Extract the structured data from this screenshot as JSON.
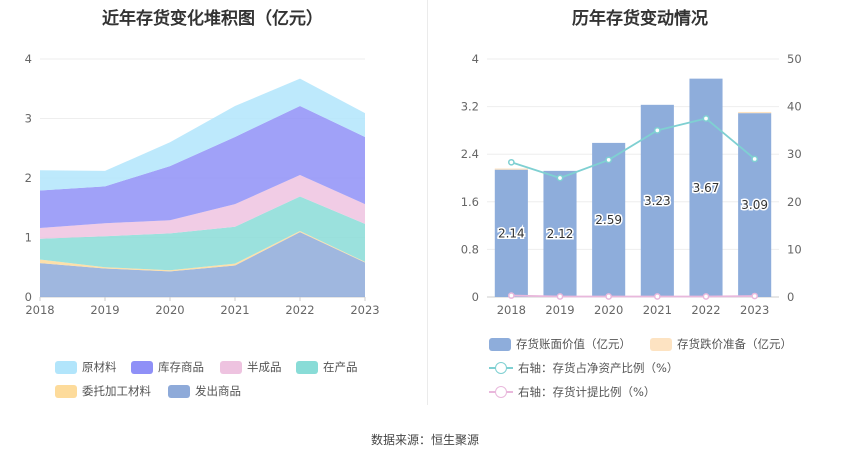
{
  "source": "数据来源：恒生聚源",
  "chart_data": [
    {
      "type": "area",
      "title": "近年存货变化堆积图（亿元）",
      "categories": [
        "2018",
        "2019",
        "2020",
        "2021",
        "2022",
        "2023"
      ],
      "ylim": [
        0,
        4
      ],
      "yticks": [
        "0",
        "1",
        "2",
        "3",
        "4"
      ],
      "grid": true,
      "legend_position": "bottom",
      "series": [
        {
          "name": "发出商品",
          "color": "#8eaad9",
          "values": [
            0.57,
            0.48,
            0.43,
            0.53,
            1.09,
            0.58
          ]
        },
        {
          "name": "委托加工材料",
          "color": "#fddb9b",
          "values": [
            0.06,
            0.02,
            0.02,
            0.03,
            0.02,
            0.01
          ]
        },
        {
          "name": "在产品",
          "color": "#89dcd7",
          "values": [
            0.35,
            0.52,
            0.62,
            0.62,
            0.58,
            0.64
          ]
        },
        {
          "name": "半成品",
          "color": "#eec3e0",
          "values": [
            0.18,
            0.22,
            0.22,
            0.38,
            0.36,
            0.33
          ]
        },
        {
          "name": "库存商品",
          "color": "#8f90f7",
          "values": [
            0.63,
            0.62,
            0.91,
            1.13,
            1.16,
            1.13
          ]
        },
        {
          "name": "原材料",
          "color": "#b2e5fb",
          "values": [
            0.34,
            0.26,
            0.4,
            0.52,
            0.46,
            0.4
          ]
        }
      ]
    },
    {
      "type": "bar",
      "title": "历年存货变动情况",
      "categories": [
        "2018",
        "2019",
        "2020",
        "2021",
        "2022",
        "2023"
      ],
      "ylim_left": [
        0,
        4
      ],
      "yticks_left": [
        "0",
        "0.8",
        "1.6",
        "2.4",
        "3.2",
        "4"
      ],
      "ylim_right": [
        0,
        50
      ],
      "yticks_right": [
        "0",
        "10",
        "20",
        "30",
        "40",
        "50"
      ],
      "legend_position": "bottom",
      "series": [
        {
          "name": "存货账面价值（亿元）",
          "color": "#8eaddb",
          "axis": "left",
          "kind": "bar",
          "values": [
            2.14,
            2.12,
            2.59,
            3.23,
            3.67,
            3.09
          ],
          "labels": [
            "2.14",
            "2.12",
            "2.59",
            "3.23",
            "3.67",
            "3.09"
          ]
        },
        {
          "name": "存货跌价准备（亿元）",
          "color": "#fde3c2",
          "axis": "left",
          "kind": "bar",
          "values": [
            0.02,
            0.0,
            0.0,
            0.0,
            0.0,
            0.02
          ]
        },
        {
          "name": "右轴：存货占净资产比例（%）",
          "color": "#7fd0d2",
          "axis": "right",
          "kind": "line",
          "values": [
            28.3,
            25.0,
            28.8,
            35.0,
            37.5,
            29.0
          ]
        },
        {
          "name": "右轴：存货计提比例（%）",
          "color": "#e9b8dc",
          "axis": "right",
          "kind": "line",
          "values": [
            0.3,
            0.1,
            0.1,
            0.1,
            0.1,
            0.2
          ]
        }
      ]
    }
  ]
}
